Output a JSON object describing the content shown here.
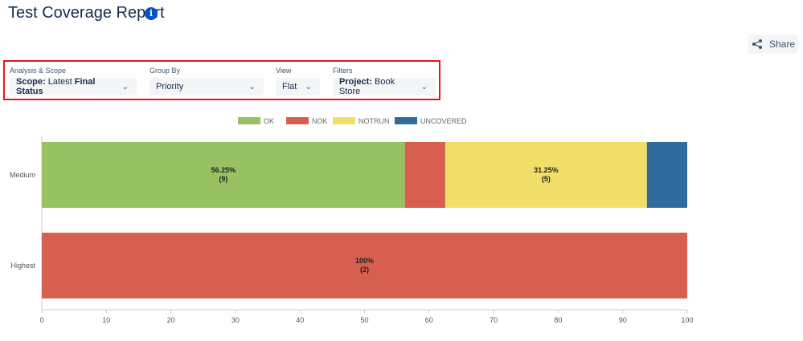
{
  "header": {
    "title": "Test Coverage Report",
    "info_icon": "info-icon"
  },
  "toolbar": {
    "share_label": "Share",
    "share_icon": "share-icon"
  },
  "controls": {
    "analysis": {
      "label": "Analysis & Scope",
      "prefix": "Scope:",
      "middle": "Latest",
      "bold": "Final Status"
    },
    "group_by": {
      "label": "Group By",
      "value": "Priority"
    },
    "view": {
      "label": "View",
      "value": "Flat"
    },
    "filters": {
      "label": "Filters",
      "prefix": "Project:",
      "value": "Book Store"
    }
  },
  "colors": {
    "OK": "#98c163",
    "NOK": "#d65f50",
    "NOTRUN": "#f2df6a",
    "UNCOVERED": "#306b9e"
  },
  "chart_data": {
    "type": "bar",
    "orientation": "horizontal",
    "stacked": true,
    "categories": [
      "Medium",
      "Highest"
    ],
    "series": [
      {
        "name": "OK",
        "values": [
          56.25,
          0
        ]
      },
      {
        "name": "NOK",
        "values": [
          6.25,
          100
        ]
      },
      {
        "name": "NOTRUN",
        "values": [
          31.25,
          0
        ]
      },
      {
        "name": "UNCOVERED",
        "values": [
          6.25,
          0
        ]
      }
    ],
    "data_labels": [
      {
        "category": "Medium",
        "series": "OK",
        "text": "56.25%",
        "count": "(9)"
      },
      {
        "category": "Medium",
        "series": "NOTRUN",
        "text": "31.25%",
        "count": "(5)"
      },
      {
        "category": "Highest",
        "series": "NOK",
        "text": "100%",
        "count": "(2)"
      }
    ],
    "xlim": [
      0,
      100
    ],
    "xticks": [
      0,
      10,
      20,
      30,
      40,
      50,
      60,
      70,
      80,
      90,
      100
    ],
    "legend_position": "top",
    "grid": false
  }
}
